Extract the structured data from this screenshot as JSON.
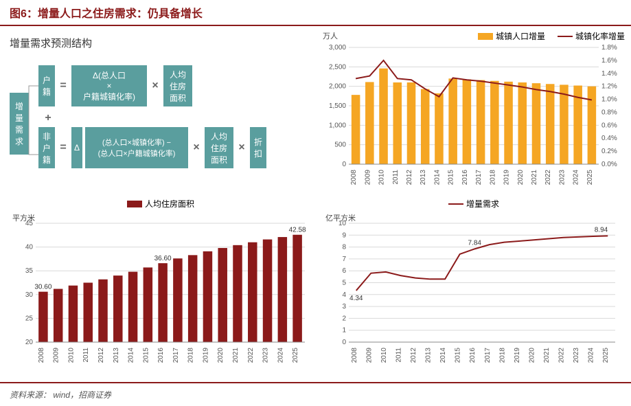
{
  "header": {
    "title": "图6：增量人口之住房需求：仍具备增长"
  },
  "footer": {
    "label": "资料来源：",
    "source": "wind，招商证券"
  },
  "flow": {
    "title": "增量需求预测结构",
    "root": "增量需求",
    "row1": {
      "a": "户籍",
      "eq": "=",
      "delta": "Δ(总人口\n×\n户籍城镇化率)",
      "mul": "×",
      "b": "人均住房面积"
    },
    "plus": "+",
    "row2": {
      "a": "非户籍",
      "eq": "=",
      "delta": "Δ",
      "bracket": "(总人口×城镇化率) −\n(总人口×户籍城镇化率)",
      "mul": "×",
      "b": "人均住房面积",
      "mul2": "×",
      "c": "折扣"
    },
    "box_bg": "#5a9e9e",
    "box_text": "#ffffff"
  },
  "chart_tr": {
    "ylabel_left": "万人",
    "legend_bar": "城镇人口增量",
    "legend_line": "城镇化率增量",
    "years": [
      "2008",
      "2009",
      "2010",
      "2011",
      "2012",
      "2013",
      "2014",
      "2015",
      "2016",
      "2017",
      "2018",
      "2019",
      "2020",
      "2021",
      "2022",
      "2023",
      "2024",
      "2025"
    ],
    "bar_values": [
      1780,
      2110,
      2460,
      2100,
      2100,
      1930,
      1820,
      2200,
      2180,
      2160,
      2140,
      2120,
      2100,
      2080,
      2060,
      2040,
      2020,
      2000
    ],
    "line_values": [
      1.32,
      1.36,
      1.6,
      1.32,
      1.3,
      1.16,
      1.04,
      1.33,
      1.3,
      1.28,
      1.25,
      1.22,
      1.19,
      1.15,
      1.12,
      1.08,
      1.03,
      0.99
    ],
    "ylim_left": [
      0,
      3000
    ],
    "ytick_left": 500,
    "ylim_right": [
      0,
      1.8
    ],
    "ytick_right": 0.2,
    "bar_color": "#f5a623",
    "line_color": "#8b1a1a",
    "grid_color": "#d9d9d9",
    "bg": "#ffffff",
    "label_fontsize": 10
  },
  "chart_bl": {
    "legend": "人均住房面积",
    "ylabel": "平方米",
    "years": [
      "2008",
      "2009",
      "2010",
      "2011",
      "2012",
      "2013",
      "2014",
      "2015",
      "2016",
      "2017",
      "2018",
      "2019",
      "2020",
      "2021",
      "2022",
      "2023",
      "2024",
      "2025"
    ],
    "values": [
      30.6,
      31.2,
      31.9,
      32.5,
      33.2,
      34.0,
      34.8,
      35.7,
      36.6,
      37.6,
      38.3,
      39.1,
      39.8,
      40.4,
      41.0,
      41.6,
      42.1,
      42.58
    ],
    "callouts": [
      {
        "i": 0,
        "label": "30.60"
      },
      {
        "i": 8,
        "label": "36.60"
      },
      {
        "i": 17,
        "label": "42.58"
      }
    ],
    "ylim": [
      20,
      45
    ],
    "ytick": 5,
    "bar_color": "#8b1a1a",
    "grid_color": "#d9d9d9",
    "label_fontsize": 10
  },
  "chart_br": {
    "legend": "增量需求",
    "ylabel": "亿平方米",
    "years": [
      "2008",
      "2009",
      "2010",
      "2011",
      "2012",
      "2013",
      "2014",
      "2015",
      "2016",
      "2017",
      "2018",
      "2019",
      "2020",
      "2021",
      "2022",
      "2023",
      "2024",
      "2025"
    ],
    "values": [
      4.34,
      5.8,
      5.9,
      5.6,
      5.4,
      5.3,
      5.3,
      7.4,
      7.84,
      8.2,
      8.4,
      8.5,
      8.6,
      8.7,
      8.8,
      8.85,
      8.9,
      8.94
    ],
    "callouts": [
      {
        "i": 0,
        "label": "4.34"
      },
      {
        "i": 8,
        "label": "7.84"
      },
      {
        "i": 17,
        "label": "8.94"
      }
    ],
    "ylim": [
      0,
      10
    ],
    "ytick": 1,
    "line_color": "#8b1a1a",
    "grid_color": "#d9d9d9",
    "label_fontsize": 10
  }
}
